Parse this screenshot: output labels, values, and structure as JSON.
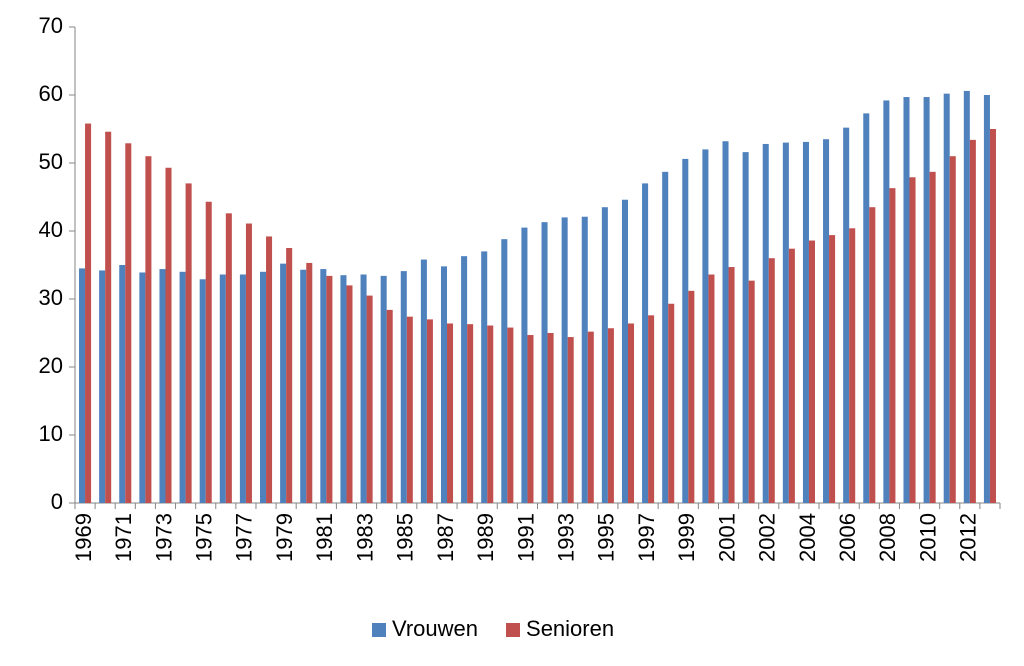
{
  "chart_data": {
    "type": "bar",
    "categories": [
      "1969",
      null,
      "1971",
      null,
      "1973",
      null,
      "1975",
      null,
      "1977",
      null,
      "1979",
      null,
      "1981",
      null,
      "1983",
      null,
      "1985",
      null,
      "1987",
      null,
      "1989",
      null,
      "1991",
      null,
      "1993",
      null,
      "1995",
      null,
      "1997",
      null,
      "1999",
      null,
      "2001",
      null,
      "2002",
      null,
      "2004",
      null,
      "2006",
      null,
      "2008",
      null,
      "2010",
      null,
      "2012",
      null
    ],
    "series": [
      {
        "name": "Vrouwen",
        "color": "#4f81bd",
        "values": [
          34.5,
          34.2,
          35.0,
          33.9,
          34.4,
          34.0,
          32.9,
          33.6,
          33.6,
          34.0,
          35.2,
          34.3,
          34.4,
          33.5,
          33.6,
          33.4,
          34.1,
          35.8,
          34.8,
          36.3,
          37.0,
          38.8,
          40.5,
          41.3,
          42.0,
          42.1,
          43.5,
          44.6,
          47.0,
          48.7,
          50.6,
          52.0,
          53.2,
          51.6,
          52.8,
          53.0,
          53.1,
          53.5,
          55.2,
          57.3,
          59.2,
          59.7,
          59.7,
          60.2,
          60.6,
          60.0
        ]
      },
      {
        "name": "Senioren",
        "color": "#c0504d",
        "values": [
          55.8,
          54.6,
          52.9,
          51.0,
          49.3,
          47.0,
          44.3,
          42.6,
          41.1,
          39.2,
          37.5,
          35.3,
          33.4,
          32.0,
          30.5,
          28.4,
          27.4,
          27.0,
          26.4,
          26.3,
          26.1,
          25.8,
          24.7,
          25.0,
          24.4,
          25.2,
          25.7,
          26.4,
          27.6,
          29.3,
          31.2,
          33.6,
          34.7,
          32.7,
          36.0,
          37.4,
          38.6,
          39.4,
          40.4,
          43.5,
          46.3,
          47.9,
          48.7,
          51.0,
          53.4,
          55.0
        ]
      }
    ],
    "ylim": [
      0,
      70
    ],
    "yticks": [
      0,
      10,
      20,
      30,
      40,
      50,
      60,
      70
    ],
    "grid": false,
    "legend": "bottom"
  }
}
